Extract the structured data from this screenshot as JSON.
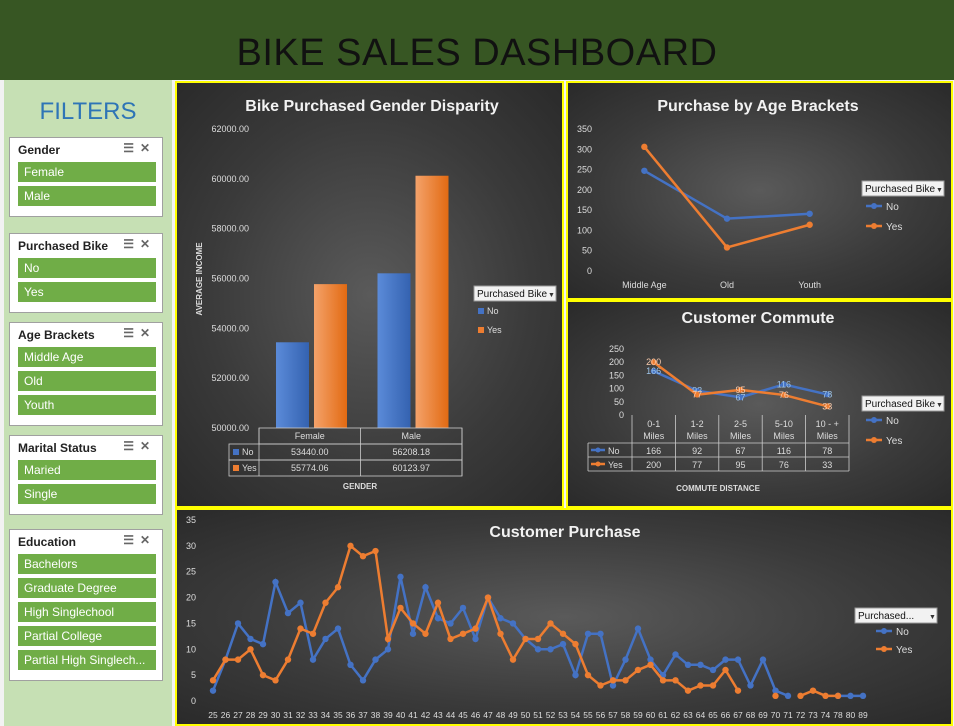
{
  "header": {
    "title": "BIKE SALES DASHBOARD"
  },
  "filters": {
    "title": "FILTERS",
    "slicers": [
      {
        "title": "Gender",
        "items": [
          "Female",
          "Male"
        ]
      },
      {
        "title": "Purchased Bike",
        "items": [
          "No",
          "Yes"
        ]
      },
      {
        "title": "Age Brackets",
        "items": [
          "Middle Age",
          "Old",
          "Youth"
        ]
      },
      {
        "title": "Marital Status",
        "items": [
          "Maried",
          "Single"
        ]
      },
      {
        "title": "Education",
        "items": [
          "Bachelors",
          "Graduate Degree",
          "High Singlechool",
          "Partial College",
          "Partial High Singlech..."
        ]
      }
    ]
  },
  "colors": {
    "no": "#4472c4",
    "yes": "#ed7d31",
    "border": "#ffff00",
    "header": "#375623",
    "slicer_item": "#70ad47"
  },
  "legend": {
    "title": "Purchased Bike",
    "title_short": "Purchased...",
    "no": "No",
    "yes": "Yes"
  },
  "chart_data": [
    {
      "type": "bar",
      "title": "Bike Purchased Gender Disparity",
      "xlabel": "GENDER",
      "ylabel": "AVERAGE INCOME",
      "categories": [
        "Female",
        "Male"
      ],
      "ylim": [
        50000,
        62000
      ],
      "ytick_labels": [
        "62000.00",
        "60000.00",
        "58000.00",
        "56000.00",
        "54000.00",
        "52000.00",
        "50000.00"
      ],
      "series": [
        {
          "name": "No",
          "values": [
            53440.0,
            56208.18
          ],
          "labels": [
            "53440.00",
            "56208.18"
          ]
        },
        {
          "name": "Yes",
          "values": [
            55774.06,
            60123.97
          ],
          "labels": [
            "55774.06",
            "60123.97"
          ]
        }
      ],
      "legend_position": "right"
    },
    {
      "type": "line",
      "title": "Purchase by Age Brackets",
      "categories": [
        "Middle Age",
        "Old",
        "Youth"
      ],
      "ylim": [
        0,
        350
      ],
      "ytick_labels": [
        "350",
        "300",
        "250",
        "200",
        "150",
        "100",
        "50",
        "0"
      ],
      "series": [
        {
          "name": "No",
          "values": [
            247,
            129,
            141
          ]
        },
        {
          "name": "Yes",
          "values": [
            306,
            58,
            114
          ]
        }
      ],
      "legend_position": "right"
    },
    {
      "type": "line",
      "title": "Customer Commute",
      "xlabel": "COMMUTE DISTANCE",
      "categories": [
        "0-1 Miles",
        "1-2 Miles",
        "2-5 Miles",
        "5-10 Miles",
        "10 - + Miles"
      ],
      "ylim": [
        0,
        250
      ],
      "ytick_labels": [
        "250",
        "200",
        "150",
        "100",
        "50",
        "0"
      ],
      "series": [
        {
          "name": "No",
          "values": [
            166,
            92,
            67,
            116,
            78
          ]
        },
        {
          "name": "Yes",
          "values": [
            200,
            77,
            95,
            76,
            33
          ]
        }
      ],
      "legend_position": "right"
    },
    {
      "type": "line",
      "title": "Customer Purchase",
      "ylim": [
        0,
        35
      ],
      "ytick_labels": [
        "35",
        "30",
        "25",
        "20",
        "15",
        "10",
        "5",
        "0"
      ],
      "x": [
        25,
        26,
        27,
        28,
        29,
        30,
        31,
        32,
        33,
        34,
        35,
        36,
        37,
        38,
        39,
        40,
        41,
        42,
        43,
        44,
        45,
        46,
        47,
        48,
        49,
        50,
        51,
        52,
        53,
        54,
        55,
        56,
        57,
        58,
        59,
        60,
        61,
        62,
        63,
        64,
        65,
        66,
        67,
        68,
        69,
        70,
        71,
        72,
        73,
        74,
        78,
        80,
        89
      ],
      "series": [
        {
          "name": "No",
          "values": [
            2,
            8,
            15,
            12,
            11,
            23,
            17,
            19,
            8,
            12,
            14,
            7,
            4,
            8,
            10,
            24,
            13,
            22,
            16,
            15,
            18,
            12,
            20,
            16,
            15,
            12,
            10,
            10,
            11,
            5,
            13,
            13,
            3,
            8,
            14,
            8,
            5,
            9,
            7,
            7,
            6,
            8,
            8,
            3,
            8,
            2,
            1,
            null,
            null,
            null,
            1,
            1,
            1
          ]
        },
        {
          "name": "Yes",
          "values": [
            4,
            8,
            8,
            10,
            5,
            4,
            8,
            14,
            13,
            19,
            22,
            30,
            28,
            29,
            12,
            18,
            15,
            13,
            19,
            12,
            13,
            14,
            20,
            13,
            8,
            12,
            12,
            15,
            13,
            11,
            5,
            3,
            4,
            4,
            6,
            7,
            4,
            4,
            2,
            3,
            3,
            6,
            2,
            null,
            null,
            1,
            null,
            1,
            2,
            1,
            1,
            null,
            null
          ]
        }
      ],
      "legend_position": "right"
    }
  ]
}
